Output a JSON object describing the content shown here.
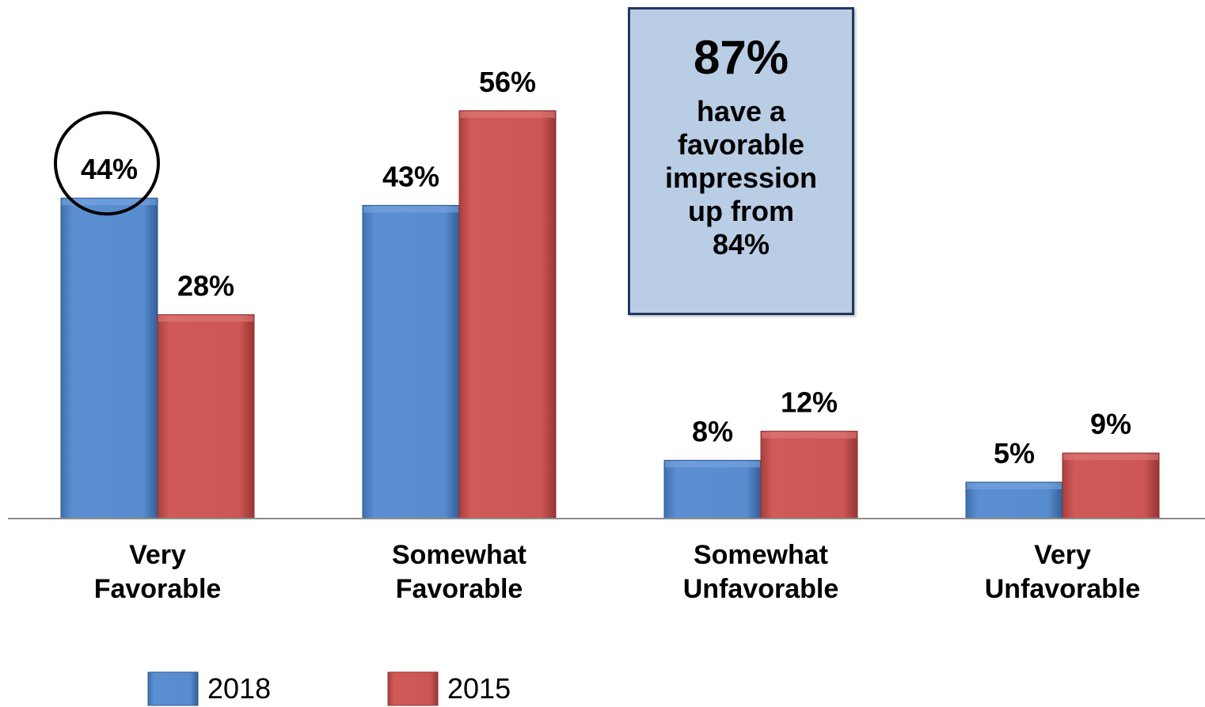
{
  "chart_data": {
    "type": "bar",
    "title": "",
    "xlabel": "",
    "ylabel": "",
    "ylim": [
      0,
      60
    ],
    "grid": false,
    "legend_position": "bottom-left",
    "categories": [
      [
        "Very",
        "Favorable"
      ],
      [
        "Somewhat",
        "Favorable"
      ],
      [
        "Somewhat",
        "Unfavorable"
      ],
      [
        "Very",
        "Unfavorable"
      ]
    ],
    "series": [
      {
        "name": "2018",
        "values": [
          44,
          43,
          8,
          5
        ],
        "labels": [
          "44%",
          "43%",
          "8%",
          "5%"
        ],
        "color": "#558ed5"
      },
      {
        "name": "2015",
        "values": [
          28,
          56,
          12,
          9
        ],
        "labels": [
          "28%",
          "56%",
          "12%",
          "9%"
        ],
        "color": "#cd5755"
      }
    ],
    "highlighted": {
      "series": 0,
      "category": 0
    }
  },
  "callout": {
    "big_value": "87%",
    "text": "have a\nfavorable\nimpression\nup from\n84%"
  }
}
